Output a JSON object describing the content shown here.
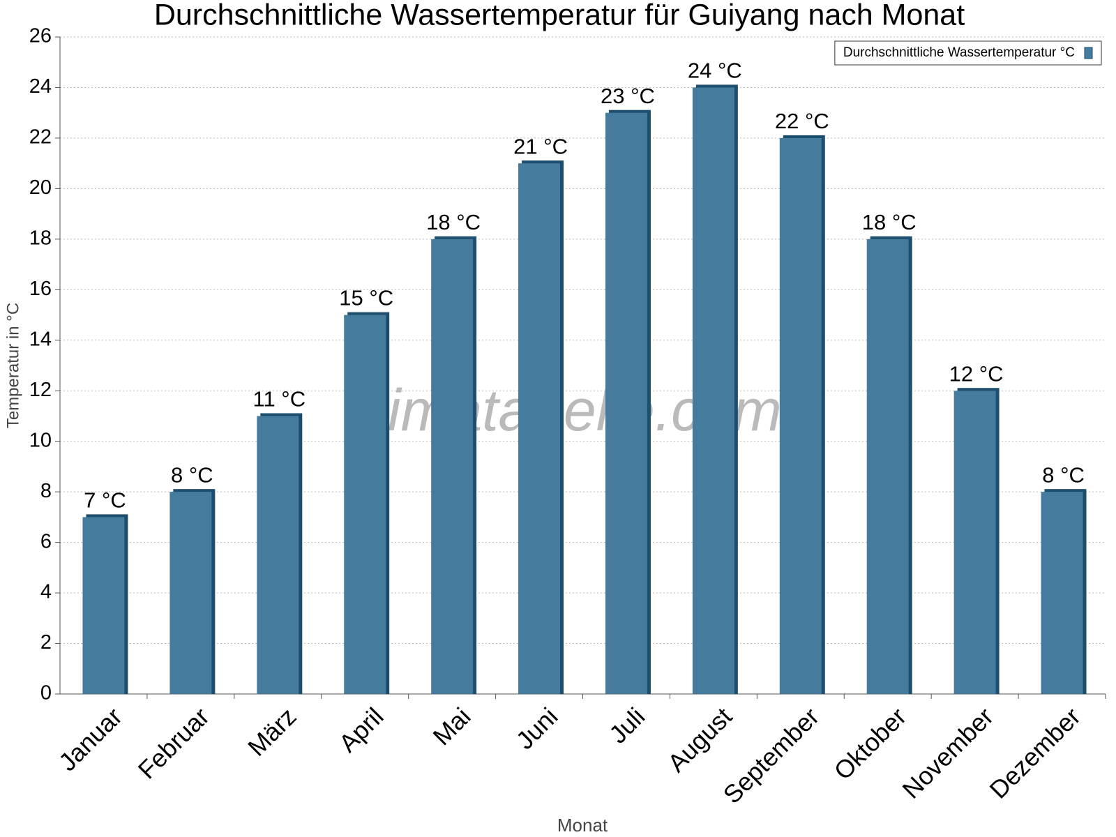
{
  "chart_data": {
    "type": "bar",
    "title": "Durchschnittliche Wassertemperatur für Guiyang nach Monat",
    "xlabel": "Monat",
    "ylabel": "Temperatur in °C",
    "watermark": "klimatabelle.com",
    "categories": [
      "Januar",
      "Februar",
      "März",
      "April",
      "Mai",
      "Juni",
      "Juli",
      "August",
      "September",
      "Oktober",
      "November",
      "Dezember"
    ],
    "series": [
      {
        "name": "Durchschnittliche Wassertemperatur °C",
        "color": "#457b9d",
        "values": [
          7,
          8,
          11,
          15,
          18,
          21,
          23,
          24,
          22,
          18,
          12,
          8
        ],
        "value_labels": [
          "7 °C",
          "8 °C",
          "11 °C",
          "15 °C",
          "18 °C",
          "21 °C",
          "23 °C",
          "24 °C",
          "22 °C",
          "18 °C",
          "12 °C",
          "8 °C"
        ]
      }
    ],
    "ylim": [
      0,
      26
    ],
    "yticks": [
      0,
      2,
      4,
      6,
      8,
      10,
      12,
      14,
      16,
      18,
      20,
      22,
      24,
      26
    ],
    "grid": true,
    "legend": "top-right"
  }
}
